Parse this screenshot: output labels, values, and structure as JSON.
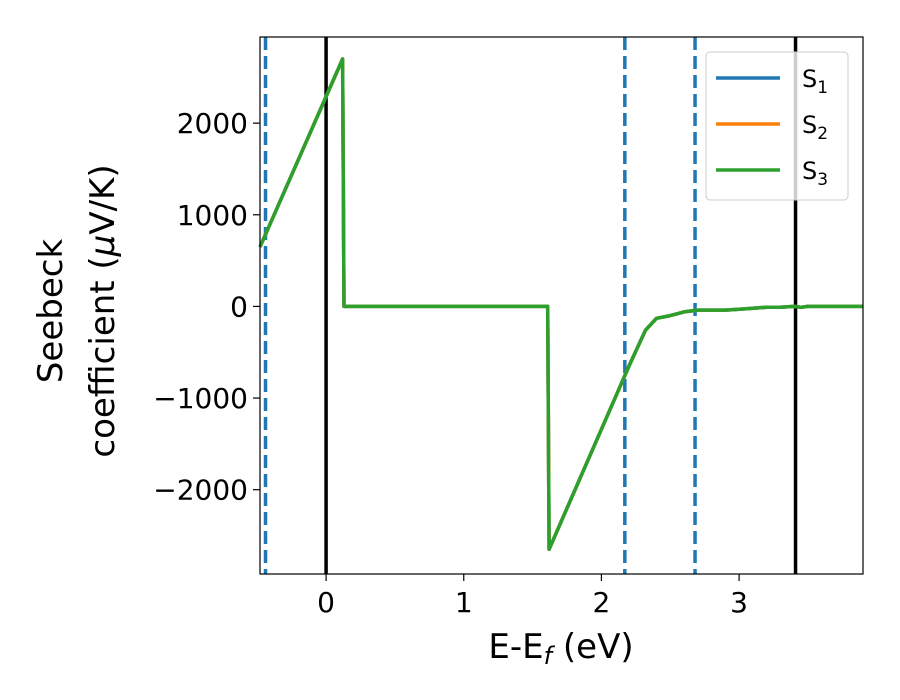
{
  "chart_data": {
    "type": "line",
    "xlabel": "E-E_f (eV)",
    "xlabel_parts": {
      "main": "E-E",
      "sub": "f",
      "tail": " (eV)"
    },
    "ylabel_line1": "Seebeck",
    "ylabel_line2_prefix": "coefficient  (",
    "ylabel_mu": "μ",
    "ylabel_line2_suffix": "V/K)",
    "xlim": [
      -0.48,
      3.9
    ],
    "ylim": [
      -2920,
      2940
    ],
    "x_ticks": [
      0,
      1,
      2,
      3
    ],
    "x_tick_labels": [
      "0",
      "1",
      "2",
      "3"
    ],
    "y_ticks": [
      2000,
      1000,
      0,
      -1000,
      -2000
    ],
    "y_tick_labels": [
      "2000",
      "1000",
      "0",
      "−1000",
      "−2000"
    ],
    "grid": false,
    "legend_position": "top-right",
    "series": [
      {
        "name_main": "S",
        "name_sub": "1",
        "color": "#1f77b4",
        "x": [
          -0.48,
          0.12,
          0.13,
          1.61,
          1.62,
          2.2,
          2.32,
          2.4,
          2.5,
          2.6,
          2.7,
          2.8,
          2.9,
          3.0,
          3.1,
          3.2,
          3.3,
          3.4,
          3.45,
          3.5,
          3.6,
          3.7,
          3.8,
          3.9
        ],
        "y": [
          650,
          2700,
          0,
          0,
          -2650,
          -650,
          -260,
          -130,
          -100,
          -60,
          -40,
          -40,
          -40,
          -30,
          -20,
          -10,
          -10,
          0,
          -10,
          0,
          0,
          0,
          0,
          0
        ]
      },
      {
        "name_main": "S",
        "name_sub": "2",
        "color": "#ff7f0e",
        "x": [
          -0.48,
          0.12,
          0.13,
          1.61,
          1.62,
          2.2,
          2.32,
          2.4,
          2.5,
          2.6,
          2.7,
          2.8,
          2.9,
          3.0,
          3.1,
          3.2,
          3.3,
          3.4,
          3.45,
          3.5,
          3.6,
          3.7,
          3.8,
          3.9
        ],
        "y": [
          650,
          2700,
          0,
          0,
          -2650,
          -650,
          -260,
          -130,
          -100,
          -60,
          -40,
          -40,
          -40,
          -30,
          -20,
          -10,
          -10,
          0,
          -10,
          0,
          0,
          0,
          0,
          0
        ]
      },
      {
        "name_main": "S",
        "name_sub": "3",
        "color": "#2ca02c",
        "x": [
          -0.48,
          0.12,
          0.13,
          1.61,
          1.62,
          2.2,
          2.32,
          2.4,
          2.5,
          2.6,
          2.7,
          2.8,
          2.9,
          3.0,
          3.1,
          3.2,
          3.3,
          3.4,
          3.45,
          3.5,
          3.6,
          3.7,
          3.8,
          3.9
        ],
        "y": [
          650,
          2700,
          0,
          0,
          -2650,
          -650,
          -260,
          -130,
          -100,
          -60,
          -40,
          -40,
          -40,
          -30,
          -20,
          -10,
          -10,
          0,
          -10,
          0,
          0,
          0,
          0,
          0
        ]
      }
    ],
    "vlines_solid": {
      "color": "#000000",
      "x": [
        0.0,
        3.41
      ]
    },
    "vlines_dashed": {
      "color": "#1f77b4",
      "x": [
        -0.44,
        2.17,
        2.68
      ]
    }
  }
}
